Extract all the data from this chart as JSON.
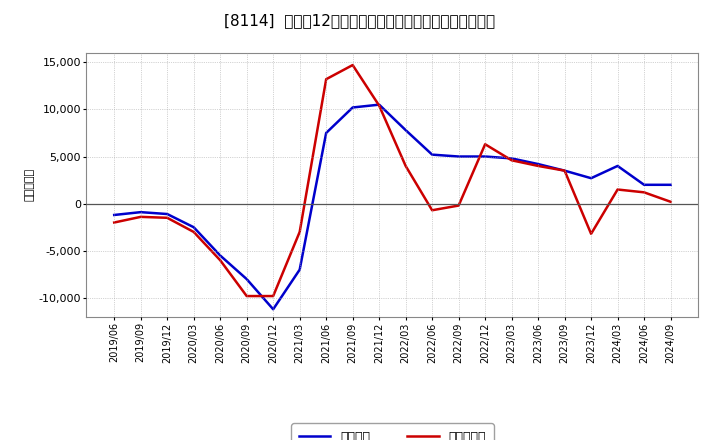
{
  "title": "[8114]  利益だ12か月移動合計の対前年同期増減額の推移",
  "ylabel": "（百万円）",
  "ylim": [
    -12000,
    16000
  ],
  "yticks": [
    -10000,
    -5000,
    0,
    5000,
    10000,
    15000
  ],
  "background_color": "#ffffff",
  "grid_color": "#aaaaaa",
  "zero_line_color": "#555555",
  "legend_labels": [
    "経常利益",
    "当期純利益"
  ],
  "line_colors": [
    "#0000cc",
    "#cc0000"
  ],
  "x_labels": [
    "2019/06",
    "2019/09",
    "2019/12",
    "2020/03",
    "2020/06",
    "2020/09",
    "2020/12",
    "2021/03",
    "2021/06",
    "2021/09",
    "2021/12",
    "2022/03",
    "2022/06",
    "2022/09",
    "2022/12",
    "2023/03",
    "2023/06",
    "2023/09",
    "2023/12",
    "2024/03",
    "2024/06",
    "2024/09"
  ],
  "keijo_rieki": [
    -1200,
    -900,
    -1100,
    -2500,
    -5500,
    -8000,
    -11200,
    -7000,
    7500,
    10200,
    10500,
    7800,
    5200,
    5000,
    5000,
    4800,
    4200,
    3500,
    2700,
    4000,
    2000,
    2000
  ],
  "touki_junn_rieki": [
    -2000,
    -1400,
    -1500,
    -3000,
    -6000,
    -9800,
    -9800,
    -3000,
    13200,
    14700,
    10400,
    4000,
    -700,
    -200,
    6300,
    4600,
    4000,
    3500,
    -3200,
    1500,
    1200,
    200
  ]
}
